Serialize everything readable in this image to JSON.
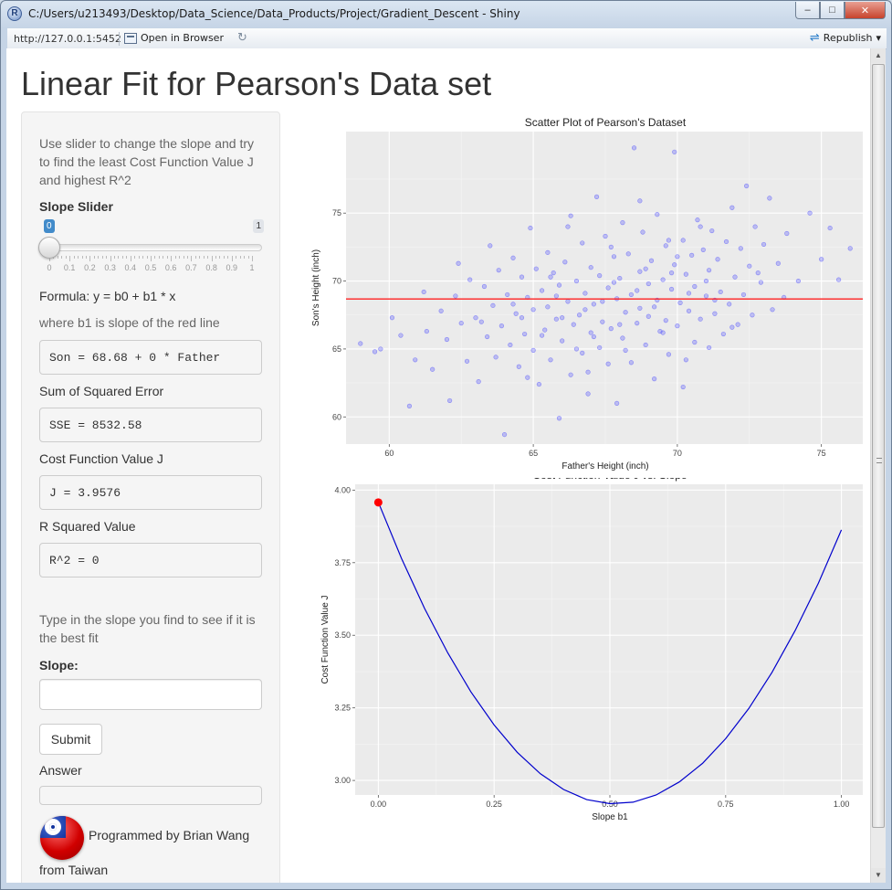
{
  "window": {
    "title": "C:/Users/u213493/Desktop/Data_Science/Data_Products/Project/Gradient_Descent - Shiny",
    "minimize_glyph": "–",
    "maximize_glyph": "□",
    "close_glyph": "✕"
  },
  "toolbar": {
    "url": "http://127.0.0.1:5452",
    "open_in_browser": "Open in Browser",
    "republish": "Republish",
    "republish_dropdown_glyph": "▾"
  },
  "page": {
    "title": "Linear Fit for Pearson's Data set"
  },
  "sidebar": {
    "intro": "Use slider to change the slope and try to find the least Cost Function Value J and highest R^2",
    "slider": {
      "label": "Slope Slider",
      "min": 0,
      "max": 1,
      "value": 0,
      "value_label": "0",
      "max_label": "1",
      "ticks": [
        "0",
        "0.1",
        "0.2",
        "0.3",
        "0.4",
        "0.5",
        "0.6",
        "0.7",
        "0.8",
        "0.9",
        "1"
      ]
    },
    "formula": "Formula: y = b0 + b1 * x",
    "formula_note": "where b1 is slope of the red line",
    "equation_output": "Son = 68.68 + 0 * Father",
    "sse_label": "Sum of Squared Error",
    "sse_output": "SSE = 8532.58",
    "cost_label": "Cost Function Value J",
    "cost_output": "J = 3.9576",
    "r2_label": "R Squared Value",
    "r2_output": "R^2 = 0",
    "guess_prompt": "Type in the slope you find to see if it is the best fit",
    "slope_input_label": "Slope:",
    "slope_input_value": "",
    "submit_label": "Submit",
    "answer_label": "Answer",
    "answer_value": "",
    "credit_line1": "Programmed by Brian Wang",
    "credit_line2": "from Taiwan"
  },
  "chart_data": [
    {
      "type": "scatter",
      "title": "Scatter Plot of Pearson's Dataset",
      "xlabel": "Father's Height (inch)",
      "ylabel": "Son's Height (inch)",
      "xlim": [
        58.5,
        76.5
      ],
      "ylim": [
        58,
        81
      ],
      "xticks": [
        60,
        65,
        70,
        75
      ],
      "yticks": [
        60,
        65,
        70,
        75
      ],
      "grid": true,
      "panel_color": "#ebebeb",
      "point_color": "#4040ff",
      "series": [
        {
          "values": [
            [
              59.0,
              65.4
            ],
            [
              59.5,
              64.8
            ],
            [
              59.7,
              65.0
            ],
            [
              60.1,
              67.3
            ],
            [
              60.4,
              66.0
            ],
            [
              60.7,
              60.8
            ],
            [
              60.9,
              64.2
            ],
            [
              61.2,
              69.2
            ],
            [
              61.3,
              66.3
            ],
            [
              61.5,
              63.5
            ],
            [
              61.8,
              67.8
            ],
            [
              62.0,
              65.7
            ],
            [
              62.1,
              61.2
            ],
            [
              62.3,
              68.9
            ],
            [
              62.5,
              66.9
            ],
            [
              62.7,
              64.1
            ],
            [
              62.8,
              70.1
            ],
            [
              63.0,
              67.3
            ],
            [
              63.1,
              62.6
            ],
            [
              63.3,
              69.6
            ],
            [
              63.4,
              65.9
            ],
            [
              63.5,
              72.6
            ],
            [
              63.6,
              68.2
            ],
            [
              63.7,
              64.4
            ],
            [
              63.8,
              70.8
            ],
            [
              63.9,
              66.7
            ],
            [
              64.0,
              58.7
            ],
            [
              64.1,
              69.0
            ],
            [
              64.2,
              65.3
            ],
            [
              64.3,
              71.7
            ],
            [
              64.4,
              67.6
            ],
            [
              64.5,
              63.7
            ],
            [
              64.6,
              70.3
            ],
            [
              64.7,
              66.1
            ],
            [
              64.8,
              68.8
            ],
            [
              64.9,
              73.9
            ],
            [
              65.0,
              64.9
            ],
            [
              65.0,
              67.9
            ],
            [
              65.1,
              70.9
            ],
            [
              65.2,
              62.4
            ],
            [
              65.3,
              69.3
            ],
            [
              65.4,
              66.4
            ],
            [
              65.5,
              72.1
            ],
            [
              65.5,
              68.1
            ],
            [
              65.6,
              64.2
            ],
            [
              65.7,
              70.6
            ],
            [
              65.8,
              67.2
            ],
            [
              65.9,
              59.9
            ],
            [
              65.9,
              69.7
            ],
            [
              66.0,
              65.6
            ],
            [
              66.1,
              71.4
            ],
            [
              66.2,
              68.5
            ],
            [
              66.3,
              63.1
            ],
            [
              66.3,
              74.8
            ],
            [
              66.4,
              66.8
            ],
            [
              66.5,
              70.0
            ],
            [
              66.6,
              67.5
            ],
            [
              66.7,
              72.8
            ],
            [
              66.7,
              64.7
            ],
            [
              66.8,
              69.1
            ],
            [
              66.9,
              61.7
            ],
            [
              67.0,
              71.0
            ],
            [
              67.0,
              66.2
            ],
            [
              67.1,
              68.3
            ],
            [
              67.2,
              76.2
            ],
            [
              67.3,
              65.1
            ],
            [
              67.3,
              70.4
            ],
            [
              67.4,
              67.0
            ],
            [
              67.5,
              73.3
            ],
            [
              67.6,
              63.9
            ],
            [
              67.6,
              69.5
            ],
            [
              67.7,
              66.5
            ],
            [
              67.8,
              71.8
            ],
            [
              67.9,
              68.7
            ],
            [
              67.9,
              61.0
            ],
            [
              68.0,
              70.2
            ],
            [
              68.1,
              65.8
            ],
            [
              68.1,
              74.3
            ],
            [
              68.2,
              67.7
            ],
            [
              68.3,
              72.0
            ],
            [
              68.4,
              69.0
            ],
            [
              68.4,
              64.0
            ],
            [
              68.5,
              79.8
            ],
            [
              68.6,
              66.9
            ],
            [
              68.7,
              70.7
            ],
            [
              68.7,
              68.0
            ],
            [
              68.8,
              73.6
            ],
            [
              68.9,
              65.3
            ],
            [
              69.0,
              69.8
            ],
            [
              69.0,
              67.4
            ],
            [
              69.1,
              71.5
            ],
            [
              69.2,
              62.8
            ],
            [
              69.3,
              68.6
            ],
            [
              69.3,
              74.9
            ],
            [
              69.4,
              66.3
            ],
            [
              69.5,
              70.1
            ],
            [
              69.6,
              72.6
            ],
            [
              69.6,
              67.1
            ],
            [
              69.7,
              64.6
            ],
            [
              69.8,
              69.4
            ],
            [
              69.9,
              71.2
            ],
            [
              69.9,
              79.5
            ],
            [
              70.0,
              66.7
            ],
            [
              70.1,
              68.4
            ],
            [
              70.2,
              73.0
            ],
            [
              70.2,
              62.2
            ],
            [
              70.3,
              70.5
            ],
            [
              70.4,
              67.8
            ],
            [
              70.5,
              71.9
            ],
            [
              70.6,
              65.5
            ],
            [
              70.6,
              69.6
            ],
            [
              70.7,
              74.5
            ],
            [
              70.8,
              67.2
            ],
            [
              70.9,
              72.3
            ],
            [
              71.0,
              68.9
            ],
            [
              71.1,
              65.1
            ],
            [
              71.1,
              70.8
            ],
            [
              71.2,
              73.7
            ],
            [
              71.3,
              67.6
            ],
            [
              71.4,
              71.6
            ],
            [
              71.5,
              69.2
            ],
            [
              71.6,
              66.1
            ],
            [
              71.7,
              72.9
            ],
            [
              71.8,
              68.3
            ],
            [
              71.9,
              75.4
            ],
            [
              72.0,
              70.3
            ],
            [
              72.1,
              66.8
            ],
            [
              72.2,
              72.4
            ],
            [
              72.3,
              69.0
            ],
            [
              72.4,
              77.0
            ],
            [
              72.5,
              71.1
            ],
            [
              72.6,
              67.5
            ],
            [
              72.7,
              74.0
            ],
            [
              72.9,
              69.9
            ],
            [
              73.0,
              72.7
            ],
            [
              73.2,
              76.1
            ],
            [
              73.3,
              67.9
            ],
            [
              73.5,
              71.3
            ],
            [
              73.8,
              73.5
            ],
            [
              74.2,
              70.0
            ],
            [
              74.6,
              75.0
            ],
            [
              75.0,
              71.6
            ],
            [
              75.3,
              73.9
            ],
            [
              75.6,
              70.1
            ],
            [
              76.0,
              72.4
            ],
            [
              64.6,
              67.3
            ],
            [
              65.3,
              66.0
            ],
            [
              66.0,
              67.3
            ],
            [
              66.8,
              67.9
            ],
            [
              67.4,
              68.5
            ],
            [
              68.0,
              66.8
            ],
            [
              68.6,
              69.3
            ],
            [
              69.2,
              68.1
            ],
            [
              69.8,
              70.6
            ],
            [
              70.4,
              69.1
            ],
            [
              71.0,
              70.0
            ],
            [
              65.8,
              68.9
            ],
            [
              67.1,
              65.9
            ],
            [
              68.9,
              70.9
            ],
            [
              70.0,
              71.8
            ],
            [
              66.5,
              65.0
            ],
            [
              67.8,
              69.9
            ],
            [
              69.5,
              66.2
            ],
            [
              71.3,
              68.6
            ],
            [
              64.3,
              68.3
            ],
            [
              72.8,
              70.6
            ],
            [
              63.2,
              67.0
            ],
            [
              62.4,
              71.3
            ],
            [
              73.7,
              68.8
            ],
            [
              66.9,
              63.3
            ],
            [
              68.2,
              64.9
            ],
            [
              69.7,
              73.0
            ],
            [
              70.8,
              74.0
            ],
            [
              65.6,
              70.3
            ],
            [
              67.7,
              72.5
            ],
            [
              71.9,
              66.6
            ],
            [
              64.8,
              62.9
            ],
            [
              70.3,
              64.2
            ],
            [
              68.7,
              75.9
            ],
            [
              66.2,
              74.0
            ]
          ]
        }
      ],
      "fit_line": {
        "slope": 0,
        "intercept": 68.68,
        "color": "#ff2020"
      }
    },
    {
      "type": "line",
      "title": "Cost Function Value J vs. Slope",
      "xlabel": "Slope b1",
      "ylabel": "Cost Function Value J",
      "xlim": [
        -0.05,
        1.05
      ],
      "ylim": [
        2.95,
        4.02
      ],
      "xticks": [
        0,
        0.25,
        0.5,
        0.75,
        1
      ],
      "xtick_labels": [
        "0.00",
        "0.25",
        "0.50",
        "0.75",
        "1.00"
      ],
      "yticks": [
        3.0,
        3.25,
        3.5,
        3.75,
        4.0
      ],
      "ytick_labels": [
        "3.00",
        "3.25",
        "3.50",
        "3.75",
        "4.00"
      ],
      "grid": true,
      "panel_color": "#ebebeb",
      "line_color": "#0000cc",
      "series": [
        {
          "x": [
            0.0,
            0.05,
            0.1,
            0.15,
            0.2,
            0.25,
            0.3,
            0.35,
            0.4,
            0.45,
            0.5,
            0.55,
            0.6,
            0.65,
            0.7,
            0.75,
            0.8,
            0.85,
            0.9,
            0.95,
            1.0
          ],
          "values": [
            3.958,
            3.765,
            3.592,
            3.439,
            3.305,
            3.191,
            3.097,
            3.023,
            2.969,
            2.934,
            2.92,
            2.925,
            2.95,
            2.995,
            3.059,
            3.144,
            3.248,
            3.372,
            3.516,
            3.679,
            3.863
          ]
        }
      ],
      "current_point": {
        "x": 0,
        "y": 3.9576,
        "color": "#ff0000"
      }
    }
  ]
}
